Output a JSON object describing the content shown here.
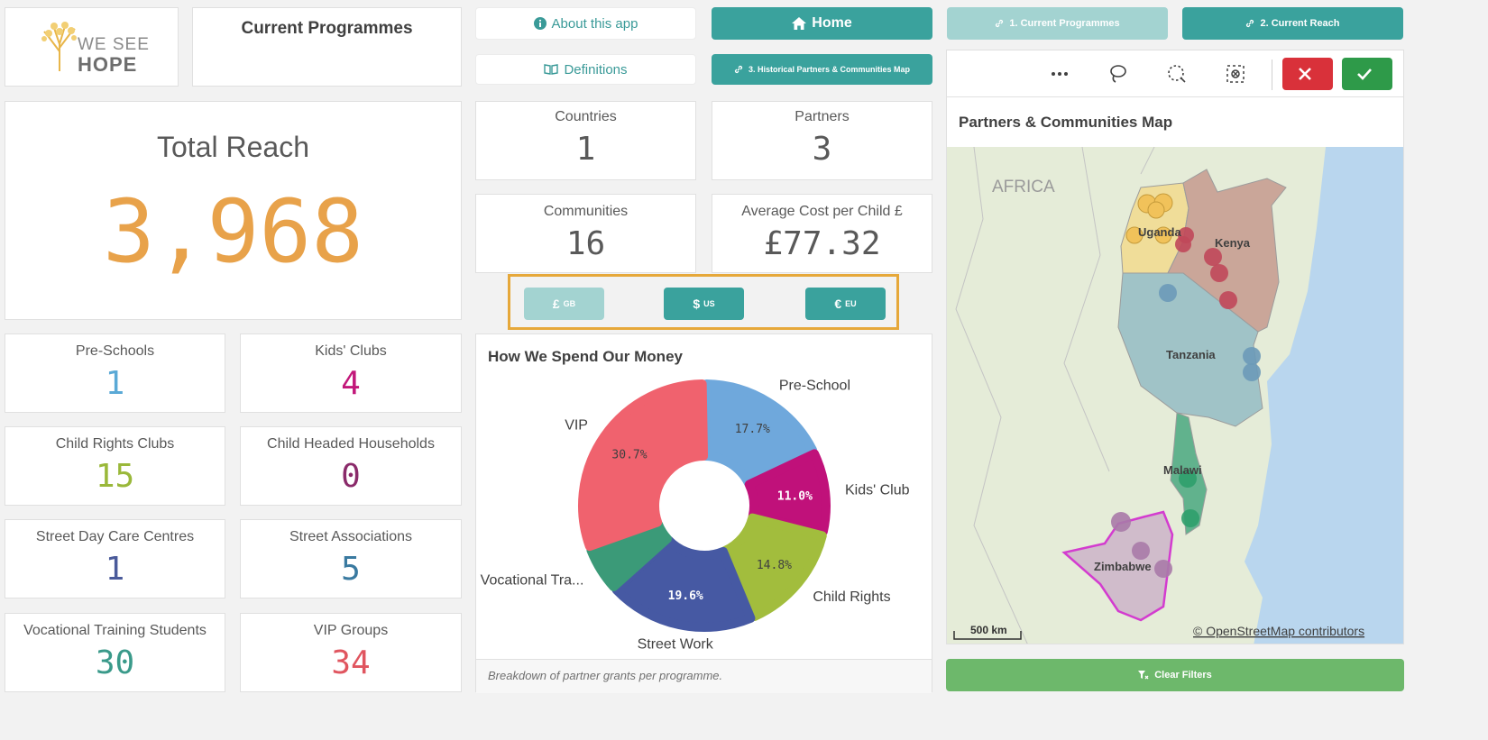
{
  "header": {
    "logo_line1": "WE SEE",
    "logo_line2": "HOPE",
    "sheet_title": "Current Programmes"
  },
  "nav": {
    "about_label": "About this app",
    "definitions_label": "Definitions",
    "home_label": "Home",
    "current_programmes_label": "1. Current Programmes",
    "current_reach_label": "2. Current Reach",
    "historical_map_label": "3. Historical Partners & Communities Map",
    "clear_filters_label": "Clear Filters"
  },
  "total_reach": {
    "label": "Total Reach",
    "value": "3,968",
    "color": "#e8a24a"
  },
  "kpis": {
    "countries": {
      "label": "Countries",
      "value": "1"
    },
    "partners": {
      "label": "Partners",
      "value": "3"
    },
    "communities": {
      "label": "Communities",
      "value": "16"
    },
    "avg_cost": {
      "label": "Average Cost per Child £",
      "value": "£77.32"
    }
  },
  "programmes": [
    {
      "label": "Pre-Schools",
      "value": "1",
      "color": "#5aa9d6"
    },
    {
      "label": "Kids' Clubs",
      "value": "4",
      "color": "#c2187a"
    },
    {
      "label": "Child Rights Clubs",
      "value": "15",
      "color": "#9ab83a"
    },
    {
      "label": "Child Headed Households",
      "value": "0",
      "color": "#8a2a6a"
    },
    {
      "label": "Street Day Care Centres",
      "value": "1",
      "color": "#4a5a9a"
    },
    {
      "label": "Street Associations",
      "value": "5",
      "color": "#3a7aa0"
    },
    {
      "label": "Vocational Training Students",
      "value": "30",
      "color": "#3a9a8a"
    },
    {
      "label": "VIP Groups",
      "value": "34",
      "color": "#e0555f"
    }
  ],
  "currency": {
    "gb": {
      "symbol": "£",
      "code": "GB"
    },
    "us": {
      "symbol": "$",
      "code": "US"
    },
    "eu": {
      "symbol": "€",
      "code": "EU"
    }
  },
  "chart_data": {
    "type": "pie",
    "title": "How We Spend Our Money",
    "footnote": "Breakdown of partner grants per programme.",
    "slices": [
      {
        "label": "Pre-School",
        "value": 17.7,
        "display": "17.7%",
        "color": "#6fa8dc"
      },
      {
        "label": "Kids' Club",
        "value": 11.0,
        "display": "11.0%",
        "color": "#c0117a"
      },
      {
        "label": "Child Rights",
        "value": 14.8,
        "display": "14.8%",
        "color": "#a2bd3d"
      },
      {
        "label": "Street Work",
        "value": 19.6,
        "display": "19.6%",
        "color": "#4659a3"
      },
      {
        "label": "Vocational Tra...",
        "value": 6.2,
        "display": "",
        "color": "#3b9a78"
      },
      {
        "label": "VIP",
        "value": 30.7,
        "display": "30.7%",
        "color": "#f0626e"
      }
    ]
  },
  "map": {
    "title": "Partners & Communities Map",
    "continent_label": "AFRICA",
    "country_labels": [
      "Uganda",
      "Kenya",
      "Tanzania",
      "Malawi",
      "Zimbabwe"
    ],
    "scale_label": "500 km",
    "attribution": "© OpenStreetMap contributors"
  },
  "colors": {
    "accent_teal": "#3aa29d",
    "confirm_green": "#2e9a49",
    "cancel_red": "#d9313a",
    "clear_filters_green": "#6db86b",
    "highlight_border": "#e6a83a"
  }
}
